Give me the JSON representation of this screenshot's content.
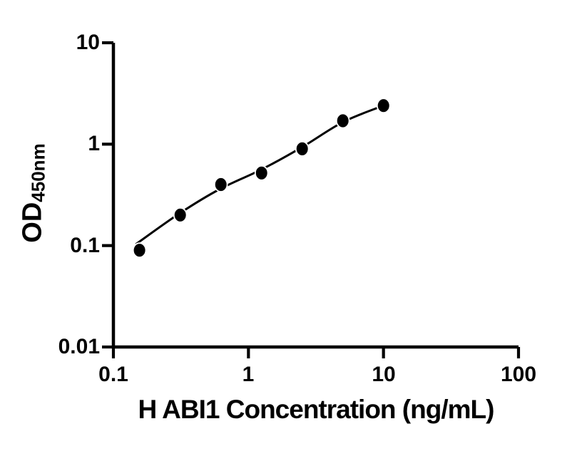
{
  "figure": {
    "background_color": "#ffffff",
    "ink_color": "#000000"
  },
  "chart_data": {
    "type": "scatter",
    "title": "",
    "xlabel": "H ABI1 Concentration (ng/mL)",
    "ylabel_main": "OD",
    "ylabel_sub": "450nm",
    "x_scale": "log",
    "y_scale": "log",
    "xlim": [
      0.1,
      100
    ],
    "ylim": [
      0.01,
      10
    ],
    "x_ticks": [
      0.1,
      1,
      10,
      100
    ],
    "x_tick_labels": [
      "0.1",
      "1",
      "10",
      "100"
    ],
    "y_ticks": [
      10,
      1,
      0.1,
      0.01
    ],
    "y_tick_labels": [
      "10",
      "1",
      "0.1",
      "0.01"
    ],
    "grid": false,
    "legend": false,
    "series": [
      {
        "name": "H ABI1 standard curve",
        "marker": "filled-circle",
        "color": "#000000",
        "x": [
          0.156,
          0.3125,
          0.625,
          1.25,
          2.5,
          5,
          10
        ],
        "y": [
          0.09,
          0.2,
          0.4,
          0.52,
          0.9,
          1.7,
          2.4
        ]
      }
    ],
    "fit_curve": {
      "name": "four-parameter-logistic-fit",
      "color": "#000000",
      "x": [
        0.148,
        0.306,
        0.612,
        1.24,
        2.48,
        5.0,
        10.0
      ],
      "y": [
        0.104,
        0.206,
        0.36,
        0.56,
        0.93,
        1.65,
        2.4
      ]
    }
  }
}
